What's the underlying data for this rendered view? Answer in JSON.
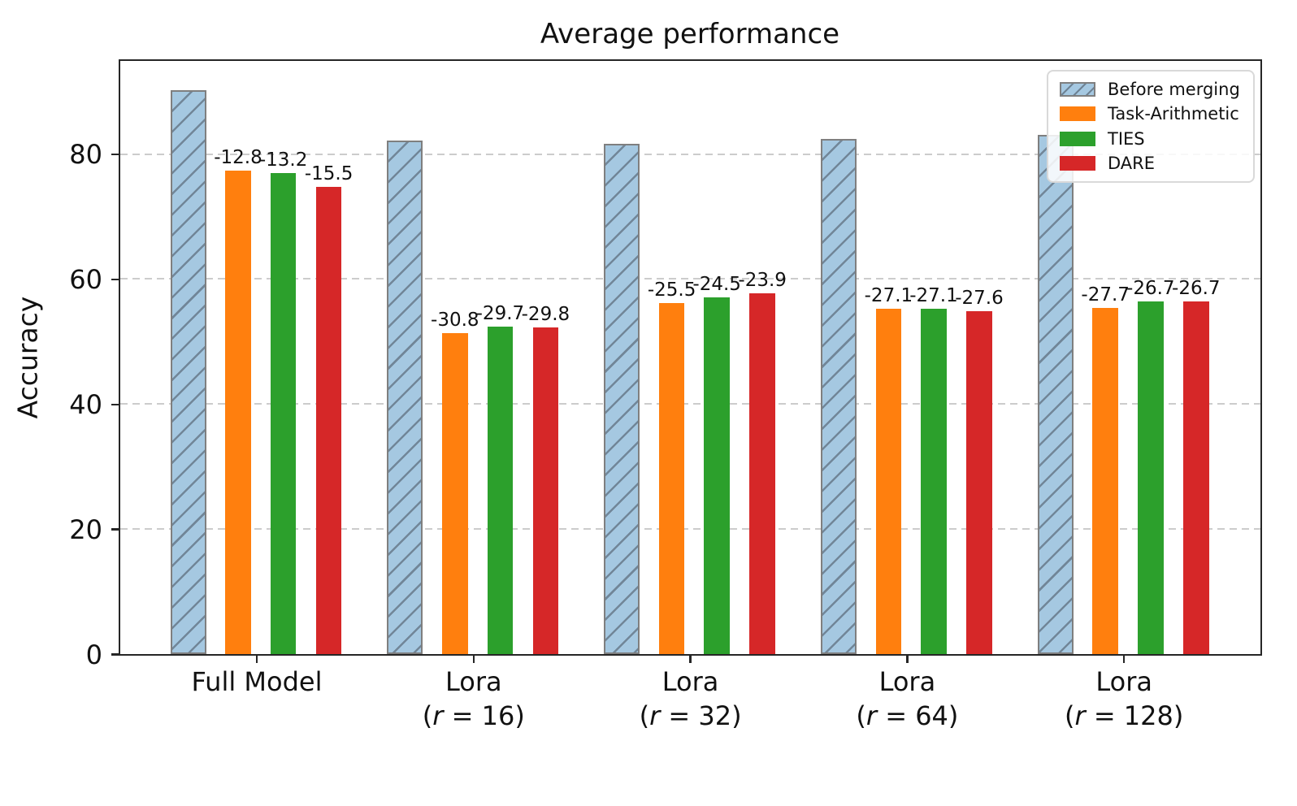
{
  "chart_data": {
    "type": "bar",
    "title": "Average performance",
    "ylabel": "Accuracy",
    "xlabel": "",
    "ylim": [
      0,
      94.9
    ],
    "yticks": [
      0,
      20,
      40,
      60,
      80
    ],
    "grid": "horizontal dashed",
    "legend_position": "upper right",
    "categories": [
      {
        "line1": "Full Model",
        "line2": ""
      },
      {
        "line1": "Lora",
        "line2": "(r = 16)"
      },
      {
        "line1": "Lora",
        "line2": "(r = 32)"
      },
      {
        "line1": "Lora",
        "line2": "(r = 64)"
      },
      {
        "line1": "Lora",
        "line2": "(r = 128)"
      }
    ],
    "series": [
      {
        "name": "Before merging",
        "values": [
          90.2,
          82.1,
          81.6,
          82.4,
          83.1
        ],
        "color": "#a5c8e1",
        "edge_color": "#7f7f7f",
        "hatch": "/",
        "bar_labels": [
          "",
          "",
          "",
          "",
          ""
        ]
      },
      {
        "name": "Task-Arithmetic",
        "values": [
          77.4,
          51.3,
          56.1,
          55.3,
          55.4
        ],
        "color": "#ff7f0e",
        "bar_labels": [
          "-12.8",
          "-30.8",
          "-25.5",
          "-27.1",
          "-27.7"
        ]
      },
      {
        "name": "TIES",
        "values": [
          77.0,
          52.4,
          57.1,
          55.3,
          56.4
        ],
        "color": "#2ca02c",
        "bar_labels": [
          "-13.2",
          "-29.7",
          "-24.5",
          "-27.1",
          "-26.7"
        ]
      },
      {
        "name": "DARE",
        "values": [
          74.7,
          52.3,
          57.7,
          54.8,
          56.4
        ],
        "color": "#d62728",
        "bar_labels": [
          "-15.5",
          "-29.8",
          "-23.9",
          "-27.6",
          "-26.7"
        ]
      }
    ]
  }
}
